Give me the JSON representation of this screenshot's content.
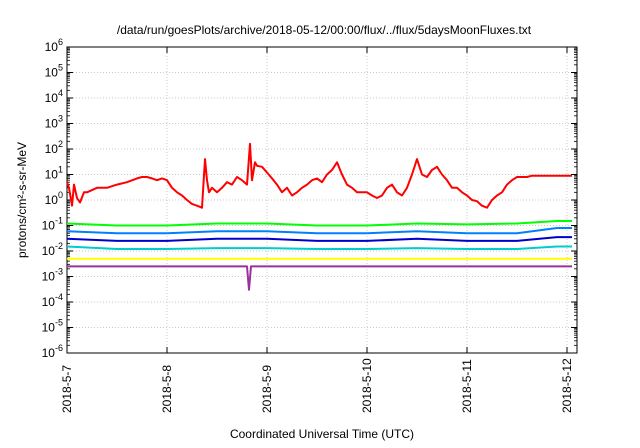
{
  "chart_data": {
    "type": "line",
    "title": "/data/run/goesPlots/archive/2018-05-12/00:00/flux/../flux/5daysMoonFluxes.txt",
    "xlabel": "Coordinated Universal Time (UTC)",
    "ylabel": "protons/cm²-s-sr-MeV",
    "yscale": "log",
    "ylim": [
      1e-06,
      1000000.0
    ],
    "xlim": [
      "2018-05-07",
      "2018-05-12"
    ],
    "grid": true,
    "legend": "none",
    "y_ticks": [
      {
        "base": "10",
        "exp": "-6"
      },
      {
        "base": "10",
        "exp": "-5"
      },
      {
        "base": "10",
        "exp": "-4"
      },
      {
        "base": "10",
        "exp": "-3"
      },
      {
        "base": "10",
        "exp": "-2"
      },
      {
        "base": "10",
        "exp": "-1"
      },
      {
        "base": "10",
        "exp": "0"
      },
      {
        "base": "10",
        "exp": "1"
      },
      {
        "base": "10",
        "exp": "2"
      },
      {
        "base": "10",
        "exp": "3"
      },
      {
        "base": "10",
        "exp": "4"
      },
      {
        "base": "10",
        "exp": "5"
      },
      {
        "base": "10",
        "exp": "6"
      }
    ],
    "x_ticks": [
      "2018-5-7",
      "2018-5-8",
      "2018-5-9",
      "2018-5-10",
      "2018-5-11",
      "2018-5-12"
    ],
    "series": [
      {
        "color": "#ff0000",
        "x": [
          0,
          0.02,
          0.05,
          0.07,
          0.1,
          0.13,
          0.17,
          0.2,
          0.3,
          0.4,
          0.5,
          0.6,
          0.7,
          0.75,
          0.8,
          0.85,
          0.9,
          0.95,
          1.0,
          1.05,
          1.1,
          1.15,
          1.2,
          1.25,
          1.3,
          1.35,
          1.38,
          1.4,
          1.42,
          1.45,
          1.5,
          1.55,
          1.6,
          1.65,
          1.7,
          1.75,
          1.8,
          1.83,
          1.85,
          1.88,
          1.9,
          1.95,
          2.0,
          2.05,
          2.1,
          2.15,
          2.2,
          2.25,
          2.3,
          2.35,
          2.4,
          2.45,
          2.5,
          2.55,
          2.6,
          2.65,
          2.7,
          2.75,
          2.8,
          2.85,
          2.9,
          2.95,
          3.0,
          3.05,
          3.1,
          3.15,
          3.2,
          3.25,
          3.3,
          3.35,
          3.4,
          3.45,
          3.5,
          3.55,
          3.6,
          3.65,
          3.7,
          3.75,
          3.8,
          3.85,
          3.9,
          3.95,
          4.0,
          4.05,
          4.1,
          4.15,
          4.2,
          4.25,
          4.3,
          4.35,
          4.4,
          4.45,
          4.5,
          4.55,
          4.6,
          4.65,
          4.7,
          4.75,
          4.8,
          4.85,
          4.9,
          4.95,
          5.0,
          5.05
        ],
        "y": [
          5,
          3,
          0.6,
          4,
          1.2,
          0.8,
          2,
          2,
          3,
          3,
          4,
          5,
          7,
          8,
          8,
          7,
          6,
          7,
          6,
          3,
          2,
          1.5,
          1,
          0.7,
          0.6,
          0.5,
          40,
          6,
          2,
          3,
          2,
          3,
          5,
          4,
          8,
          6,
          4,
          160,
          6,
          30,
          22,
          20,
          12,
          7,
          4,
          2,
          3,
          1.5,
          2,
          3,
          4,
          6,
          7,
          5,
          10,
          15,
          30,
          10,
          4,
          3,
          2,
          2,
          2,
          1.5,
          1.2,
          1.5,
          3,
          4,
          2,
          1.5,
          3,
          10,
          40,
          10,
          8,
          15,
          20,
          10,
          6,
          3,
          3,
          2,
          1.5,
          1,
          0.9,
          0.6,
          0.5,
          1,
          1.5,
          2,
          4,
          6,
          8,
          8,
          8,
          9,
          9,
          9,
          9,
          9,
          9,
          9,
          9,
          9
        ]
      },
      {
        "color": "#00ff00",
        "x": [
          0,
          0.5,
          1,
          1.5,
          2,
          2.5,
          3,
          3.5,
          4,
          4.5,
          4.9,
          5.05
        ],
        "y": [
          0.12,
          0.1,
          0.1,
          0.12,
          0.12,
          0.1,
          0.1,
          0.12,
          0.11,
          0.12,
          0.15,
          0.15
        ]
      },
      {
        "color": "#0080ff",
        "x": [
          0,
          0.5,
          1,
          1.5,
          2,
          2.5,
          3,
          3.5,
          4,
          4.5,
          4.9,
          5.05
        ],
        "y": [
          0.06,
          0.05,
          0.05,
          0.06,
          0.06,
          0.05,
          0.05,
          0.06,
          0.05,
          0.05,
          0.08,
          0.08
        ]
      },
      {
        "color": "#0000cc",
        "x": [
          0,
          0.5,
          1,
          1.5,
          2,
          2.5,
          3,
          3.5,
          4,
          4.5,
          4.9,
          5.05
        ],
        "y": [
          0.03,
          0.025,
          0.025,
          0.03,
          0.03,
          0.025,
          0.025,
          0.03,
          0.025,
          0.025,
          0.035,
          0.035
        ]
      },
      {
        "color": "#00cccc",
        "x": [
          0,
          0.5,
          1,
          1.5,
          2,
          2.5,
          3,
          3.5,
          4,
          4.5,
          4.9,
          5.05
        ],
        "y": [
          0.015,
          0.012,
          0.012,
          0.013,
          0.013,
          0.012,
          0.012,
          0.013,
          0.012,
          0.012,
          0.015,
          0.015
        ]
      },
      {
        "color": "#ffff00",
        "x": [
          0,
          0.5,
          1,
          1.5,
          2,
          2.5,
          3,
          3.5,
          4,
          4.5,
          4.9,
          5.05
        ],
        "y": [
          0.005,
          0.005,
          0.005,
          0.005,
          0.005,
          0.005,
          0.005,
          0.005,
          0.005,
          0.005,
          0.005,
          0.005
        ]
      },
      {
        "color": "#993399",
        "x": [
          0,
          0.5,
          1,
          1.5,
          1.8,
          1.82,
          1.84,
          2,
          2.5,
          3,
          3.5,
          4,
          4.5,
          4.9,
          5.05
        ],
        "y": [
          0.0025,
          0.0025,
          0.0025,
          0.0025,
          0.0025,
          0.0003,
          0.0025,
          0.0025,
          0.0025,
          0.0025,
          0.0025,
          0.0025,
          0.0025,
          0.0025,
          0.0025
        ]
      }
    ]
  }
}
